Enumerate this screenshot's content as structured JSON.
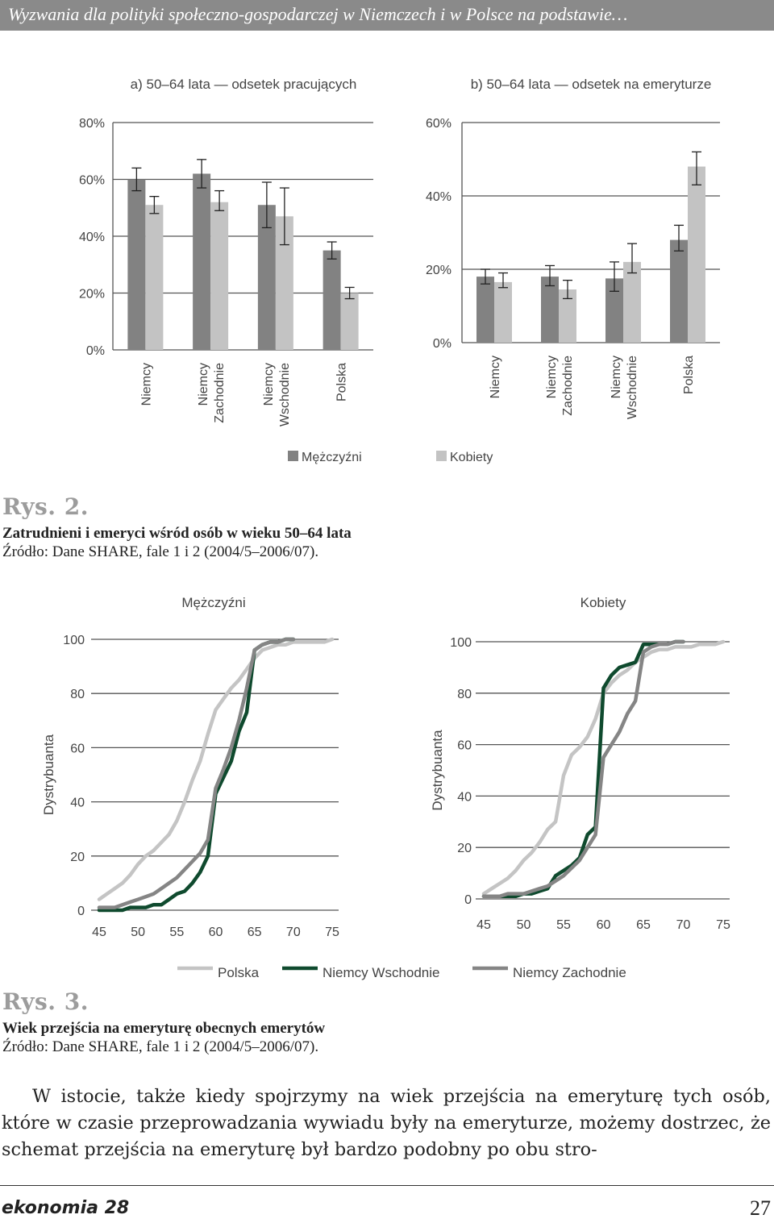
{
  "header": {
    "running_title": "Wyzwania dla polityki społeczno-gospodarczej w Niemczech i w Polsce na podstawie…"
  },
  "figure2": {
    "label": "Rys. 2.",
    "caption": "Zatrudnieni i emeryci wśród osób w wieku 50–64 lata",
    "source": "Źródło: Dane SHARE, fale 1 i 2 (2004/5–2006/07).",
    "legend": {
      "men": "Mężczyźni",
      "women": "Kobiety"
    }
  },
  "figure3": {
    "label": "Rys. 3.",
    "caption": "Wiek przejścia na emeryturę obecnych emerytów",
    "source": "Źródło: Dane SHARE, fale 1 i 2 (2004/5–2006/07).",
    "legend": {
      "polska": "Polska",
      "east": "Niemcy Wschodnie",
      "west": "Niemcy Zachodnie"
    }
  },
  "colors": {
    "men": "#828282",
    "women": "#c3c3c3",
    "polska": "#c4c4c4",
    "east": "#0f4a2e",
    "west": "#858585"
  },
  "chart_data": [
    {
      "type": "bar",
      "title": "a) 50–64 lata — odsetek pracujących",
      "categories": [
        "Niemcy",
        "Niemcy Zachodnie",
        "Niemcy Wschodnie",
        "Polska"
      ],
      "ylim": [
        0,
        80
      ],
      "yticks": [
        "0%",
        "20%",
        "40%",
        "60%",
        "80%"
      ],
      "series": [
        {
          "name": "Mężczyźni",
          "values": [
            60,
            62,
            51,
            35
          ],
          "err_low": [
            56,
            57,
            43,
            32
          ],
          "err_high": [
            64,
            67,
            59,
            38
          ]
        },
        {
          "name": "Kobiety",
          "values": [
            51,
            52,
            47,
            20
          ],
          "err_low": [
            48,
            49,
            37,
            18
          ],
          "err_high": [
            54,
            56,
            57,
            22
          ]
        }
      ]
    },
    {
      "type": "bar",
      "title": "b) 50–64 lata — odsetek na emeryturze",
      "categories": [
        "Niemcy",
        "Niemcy Zachodnie",
        "Niemcy Wschodnie",
        "Polska"
      ],
      "ylim": [
        0,
        60
      ],
      "yticks": [
        "0%",
        "20%",
        "40%",
        "60%"
      ],
      "series": [
        {
          "name": "Mężczyźni",
          "values": [
            18,
            18,
            17.5,
            28
          ],
          "err_low": [
            16,
            15.5,
            14,
            25
          ],
          "err_high": [
            20,
            21,
            22,
            32
          ]
        },
        {
          "name": "Kobiety",
          "values": [
            16.5,
            14.5,
            22,
            48
          ],
          "err_low": [
            15,
            12,
            19,
            43
          ],
          "err_high": [
            19,
            17,
            27,
            52
          ]
        }
      ]
    },
    {
      "type": "line",
      "title": "Mężczyźni",
      "ylabel": "Dystrybuanta",
      "xlim": [
        45,
        75
      ],
      "ylim": [
        0,
        100
      ],
      "xticks": [
        "45",
        "50",
        "55",
        "60",
        "65",
        "70",
        "75"
      ],
      "yticks": [
        "0",
        "20",
        "40",
        "60",
        "80",
        "100"
      ],
      "series": [
        {
          "name": "Polska",
          "x": [
            45,
            46,
            47,
            48,
            49,
            50,
            51,
            52,
            53,
            54,
            55,
            56,
            57,
            58,
            59,
            60,
            61,
            62,
            63,
            64,
            65,
            66,
            67,
            68,
            69,
            70,
            71,
            72,
            73,
            74,
            75
          ],
          "y": [
            4,
            6,
            8,
            10,
            13,
            17,
            20,
            22,
            25,
            28,
            33,
            40,
            48,
            55,
            65,
            74,
            78,
            82,
            85,
            89,
            93,
            96,
            97,
            98,
            98,
            99,
            99,
            99,
            99,
            99,
            100
          ]
        },
        {
          "name": "Niemcy Wschodnie",
          "x": [
            45,
            46,
            47,
            48,
            49,
            50,
            51,
            52,
            53,
            54,
            55,
            56,
            57,
            58,
            59,
            60,
            61,
            62,
            63,
            64,
            65,
            66,
            67,
            68,
            69,
            70
          ],
          "y": [
            0,
            0,
            0,
            0,
            1,
            1,
            1,
            2,
            2,
            4,
            6,
            7,
            10,
            14,
            20,
            43,
            49,
            55,
            66,
            73,
            96,
            98,
            99,
            99,
            100,
            100
          ]
        },
        {
          "name": "Niemcy Zachodnie",
          "x": [
            45,
            46,
            47,
            48,
            49,
            50,
            51,
            52,
            53,
            54,
            55,
            56,
            57,
            58,
            59,
            60,
            61,
            62,
            63,
            64,
            65,
            66,
            67,
            68,
            69,
            70
          ],
          "y": [
            1,
            1,
            1,
            2,
            3,
            4,
            5,
            6,
            8,
            10,
            12,
            15,
            18,
            21,
            26,
            45,
            52,
            60,
            70,
            82,
            96,
            98,
            99,
            99,
            100,
            100
          ]
        }
      ]
    },
    {
      "type": "line",
      "title": "Kobiety",
      "ylabel": "Dystrybuanta",
      "xlim": [
        45,
        75
      ],
      "ylim": [
        0,
        100
      ],
      "xticks": [
        "45",
        "50",
        "55",
        "60",
        "65",
        "70",
        "75"
      ],
      "yticks": [
        "0",
        "20",
        "40",
        "60",
        "80",
        "100"
      ],
      "series": [
        {
          "name": "Polska",
          "x": [
            45,
            46,
            47,
            48,
            49,
            50,
            51,
            52,
            53,
            54,
            55,
            56,
            57,
            58,
            59,
            60,
            61,
            62,
            63,
            64,
            65,
            66,
            67,
            68,
            69,
            70,
            71,
            72,
            73,
            74,
            75
          ],
          "y": [
            2,
            4,
            6,
            8,
            11,
            15,
            18,
            22,
            27,
            30,
            48,
            56,
            59,
            63,
            70,
            80,
            84,
            87,
            89,
            92,
            94,
            96,
            97,
            97,
            98,
            98,
            98,
            99,
            99,
            99,
            100
          ]
        },
        {
          "name": "Niemcy Wschodnie",
          "x": [
            45,
            46,
            47,
            48,
            49,
            50,
            51,
            52,
            53,
            54,
            55,
            56,
            57,
            58,
            59,
            60,
            61,
            62,
            63,
            64,
            65,
            66,
            67,
            68,
            69,
            70
          ],
          "y": [
            1,
            1,
            1,
            1,
            1,
            2,
            2,
            3,
            4,
            9,
            11,
            13,
            16,
            25,
            28,
            82,
            87,
            90,
            91,
            92,
            99,
            99,
            99,
            99,
            100,
            100
          ]
        },
        {
          "name": "Niemcy Zachodnie",
          "x": [
            45,
            46,
            47,
            48,
            49,
            50,
            51,
            52,
            53,
            54,
            55,
            56,
            57,
            58,
            59,
            60,
            61,
            62,
            63,
            64,
            65,
            66,
            67,
            68,
            69,
            70
          ],
          "y": [
            1,
            1,
            1,
            2,
            2,
            2,
            3,
            4,
            5,
            7,
            9,
            12,
            15,
            20,
            25,
            55,
            60,
            65,
            72,
            77,
            96,
            98,
            99,
            99,
            100,
            100
          ]
        }
      ]
    }
  ],
  "body": {
    "paragraph": "W istocie, także kiedy spojrzymy na wiek przejścia na emeryturę tych osób, które w czasie przeprowadzania wywiadu były na emeryturze, możemy dostrzec, że schemat przejścia na emeryturę był bardzo podobny po obu stro-"
  },
  "footer": {
    "journal": "ekonomia 28",
    "page_number": "27"
  }
}
